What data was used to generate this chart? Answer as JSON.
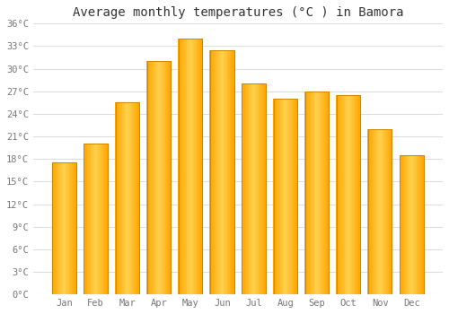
{
  "title": "Average monthly temperatures (°C ) in Bamora",
  "months": [
    "Jan",
    "Feb",
    "Mar",
    "Apr",
    "May",
    "Jun",
    "Jul",
    "Aug",
    "Sep",
    "Oct",
    "Nov",
    "Dec"
  ],
  "values": [
    17.5,
    20.0,
    25.5,
    31.0,
    34.0,
    32.5,
    28.0,
    26.0,
    27.0,
    26.5,
    22.0,
    18.5
  ],
  "bar_color_left": "#FFA500",
  "bar_color_center": "#FFD050",
  "bar_color_right": "#FFA500",
  "ylim": [
    0,
    36
  ],
  "yticks": [
    0,
    3,
    6,
    9,
    12,
    15,
    18,
    21,
    24,
    27,
    30,
    33,
    36
  ],
  "ytick_labels": [
    "0°C",
    "3°C",
    "6°C",
    "9°C",
    "12°C",
    "15°C",
    "18°C",
    "21°C",
    "24°C",
    "27°C",
    "30°C",
    "33°C",
    "36°C"
  ],
  "grid_color": "#dddddd",
  "background_color": "#ffffff",
  "title_fontsize": 10,
  "tick_fontsize": 7.5,
  "tick_color": "#777777"
}
